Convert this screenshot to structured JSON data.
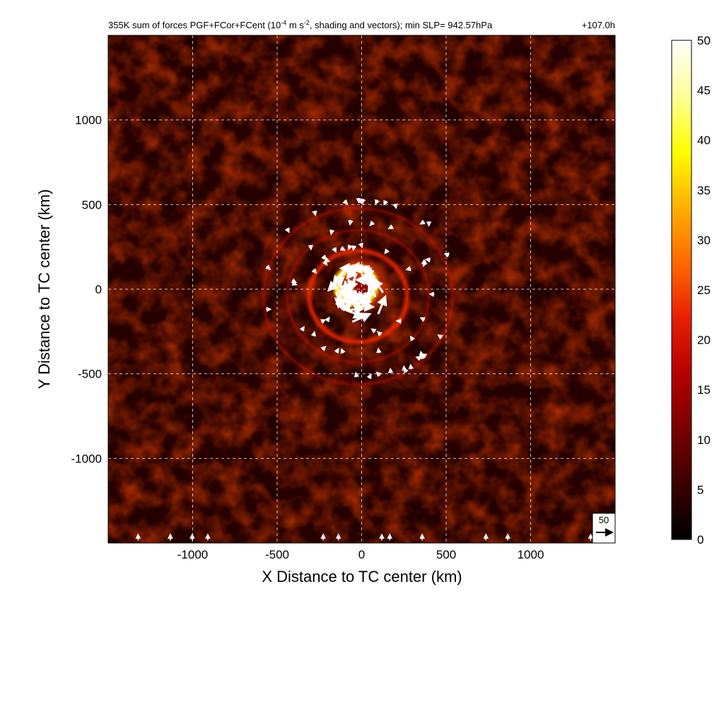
{
  "chart_data": {
    "type": "heatmap",
    "title_main": "355K sum of forces PGF+FCor+FCent (10",
    "title_exp1": "-4",
    "title_mid": " m s",
    "title_exp2": "-2",
    "title_end": ", shading and vectors); min SLP= 942.57hPa",
    "time_label": "+107.0h",
    "xlabel": "X Distance to TC center (km)",
    "ylabel": "Y Distance to TC center (km)",
    "xlim": [
      -1500,
      1500
    ],
    "ylim": [
      -1500,
      1500
    ],
    "x_ticks": [
      -1000,
      -500,
      0,
      500,
      1000
    ],
    "y_ticks": [
      1000,
      500,
      0,
      -500,
      -1000
    ],
    "grid": true,
    "grid_style": "dashed white",
    "colorbar": {
      "min": 0,
      "max": 50,
      "ticks": [
        0,
        5,
        10,
        15,
        20,
        25,
        30,
        35,
        40,
        45,
        50
      ],
      "colormap": [
        "#000000",
        "#3a0000",
        "#7a0000",
        "#b50000",
        "#e82000",
        "#ff6a00",
        "#ffb000",
        "#ffff00",
        "#ffff9a",
        "#ffffff"
      ]
    },
    "reference_vector": {
      "value": 50,
      "label": "50"
    },
    "features": {
      "center": [
        0,
        0
      ],
      "inner_core_radius_km": 150,
      "inner_core_max": 50,
      "rainband_radii_km": [
        290,
        420,
        560
      ],
      "background_level": 8
    }
  }
}
